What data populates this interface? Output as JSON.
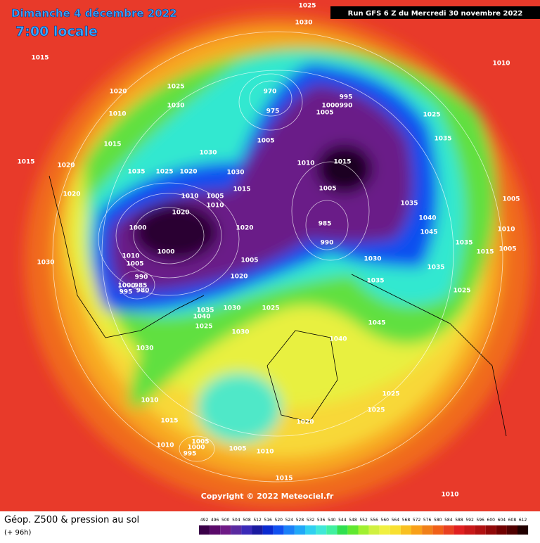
{
  "header": {
    "date": "Dimanche 4 décembre 2022",
    "time": "7:00 locale",
    "run": "Run GFS 6 Z du Mercredi 30 novembre 2022"
  },
  "copyright": "Copyright © 2022 Meteociel.fr",
  "footer": {
    "title": "Géop. Z500 & pression au sol",
    "lead": "(+ 96h)"
  },
  "legend": {
    "values": [
      492,
      496,
      500,
      504,
      508,
      512,
      516,
      520,
      524,
      528,
      532,
      536,
      540,
      544,
      548,
      552,
      556,
      560,
      564,
      568,
      572,
      576,
      580,
      584,
      588,
      592,
      596,
      600,
      604,
      608,
      612
    ],
    "colors": [
      "#3a0048",
      "#5a0a6a",
      "#6e1a86",
      "#5a2aa0",
      "#3a2ab8",
      "#1a1aa0",
      "#0a2ad0",
      "#1050f0",
      "#1a80f8",
      "#20a8f8",
      "#30d0f0",
      "#40e8d8",
      "#40f0a0",
      "#30e050",
      "#60e830",
      "#a0f030",
      "#d0f040",
      "#f0f040",
      "#f8e030",
      "#f8c020",
      "#f8a018",
      "#f08018",
      "#f06018",
      "#e84020",
      "#e02020",
      "#c81818",
      "#b01010",
      "#900808",
      "#700000",
      "#500000",
      "#200000"
    ]
  },
  "isobar_labels": [
    1025,
    1030,
    1015,
    1010,
    1020,
    1025,
    970,
    995,
    1000,
    990,
    1030,
    1010,
    1005,
    975,
    1025,
    1015,
    1035,
    1030,
    1005,
    1015,
    1020,
    1010,
    1015,
    1035,
    1025,
    1020,
    1030,
    1020,
    1015,
    1010,
    1005,
    1005,
    1005,
    1010,
    1035,
    1020,
    1040,
    1000,
    1020,
    985,
    1045,
    1010,
    1000,
    990,
    1035,
    1015,
    1005,
    1030,
    1010,
    1005,
    1005,
    1030,
    1035,
    990,
    1000,
    985,
    995,
    980,
    1020,
    1035,
    1025,
    1025,
    1030,
    1035,
    1040,
    1025,
    1045,
    1030,
    1040,
    1030,
    1010,
    1025,
    1025,
    1015,
    1020,
    1005,
    1010,
    1000,
    1005,
    1010,
    995,
    1015,
    1010
  ]
}
